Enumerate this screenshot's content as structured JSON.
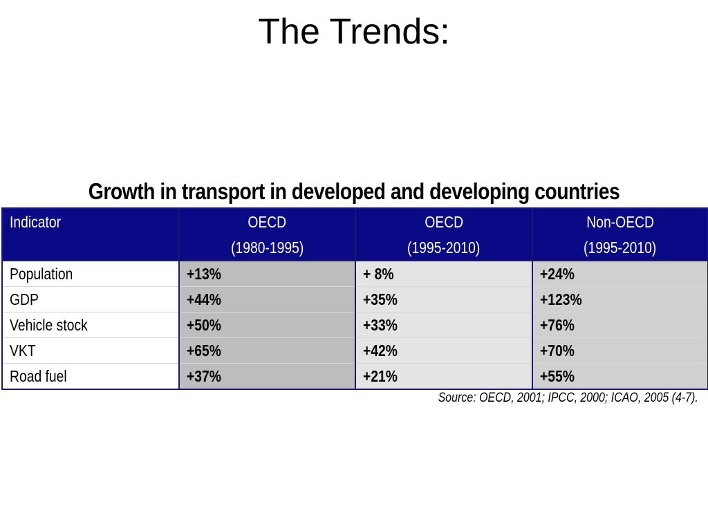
{
  "slide": {
    "title": "The Trends:",
    "table_title": "Growth in transport in developed and developing countries",
    "source": "Source: OECD, 2001; IPCC, 2000; ICAO, 2005 (4-7)."
  },
  "table": {
    "header_bg": "#0a0a86",
    "columns": [
      {
        "line1": "Indicator",
        "line2": ""
      },
      {
        "line1": "OECD",
        "line2": "(1980-1995)"
      },
      {
        "line1": "OECD",
        "line2": "(1995-2010)"
      },
      {
        "line1": "Non-OECD",
        "line2": "(1995-2010)"
      }
    ],
    "rows": [
      {
        "indicator": "Population",
        "oecd_1980_1995": "+13%",
        "oecd_1995_2010": "+ 8%",
        "non_oecd_1995_2010": "+24%"
      },
      {
        "indicator": "GDP",
        "oecd_1980_1995": "+44%",
        "oecd_1995_2010": "+35%",
        "non_oecd_1995_2010": "+123%"
      },
      {
        "indicator": "Vehicle stock",
        "oecd_1980_1995": "+50%",
        "oecd_1995_2010": "+33%",
        "non_oecd_1995_2010": "+76%"
      },
      {
        "indicator": "VKT",
        "oecd_1980_1995": "+65%",
        "oecd_1995_2010": "+42%",
        "non_oecd_1995_2010": "+70%"
      },
      {
        "indicator": "Road fuel",
        "oecd_1980_1995": "+37%",
        "oecd_1995_2010": "+21%",
        "non_oecd_1995_2010": "+55%"
      }
    ]
  }
}
